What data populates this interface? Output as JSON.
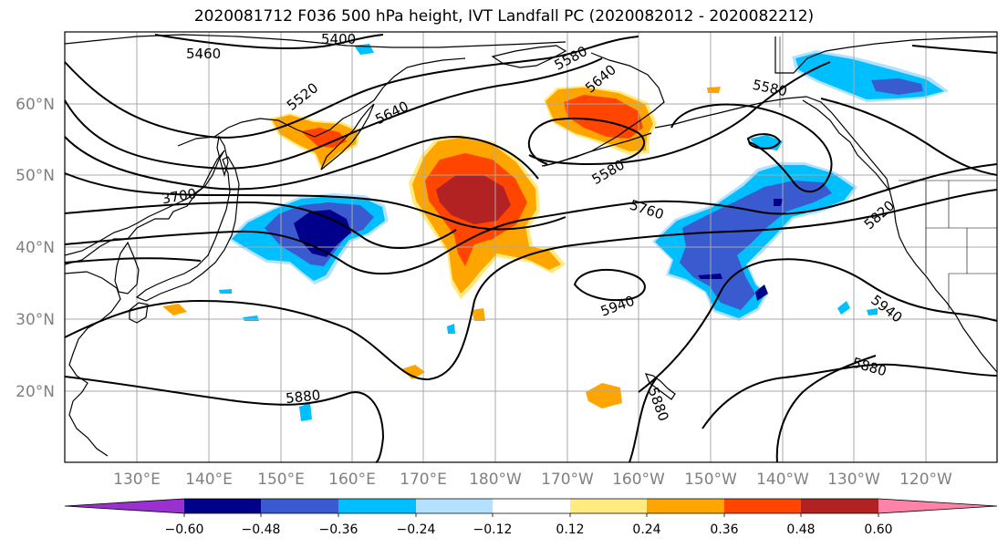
{
  "title": "2020081712 F036 500 hPa height, IVT Landfall PC (2020082012 - 2020082212)",
  "latitude_labels": [
    "60°N",
    "50°N",
    "40°N",
    "30°N",
    "20°N"
  ],
  "longitude_labels": [
    "130°E",
    "140°E",
    "150°E",
    "160°E",
    "170°E",
    "180°W",
    "170°W",
    "160°W",
    "150°W",
    "140°W",
    "130°W",
    "120°W"
  ],
  "height_contour_labels": [
    "5460",
    "5400",
    "5520",
    "5640",
    "5580",
    "5640",
    "5580",
    "5580",
    "3700",
    "5760",
    "5820",
    "5940",
    "5940",
    "5880",
    "5880",
    "5880"
  ],
  "colorbar": {
    "tick_labels": [
      "−0.60",
      "−0.48",
      "−0.36",
      "−0.24",
      "−0.12",
      "0.12",
      "0.24",
      "0.36",
      "0.48",
      "0.60"
    ],
    "colors": [
      "#9b30d0",
      "#00008b",
      "#3a5bd0",
      "#00bfff",
      "#b2e2ff",
      "#ffffff",
      "#ffeb80",
      "#ffa500",
      "#ff4500",
      "#b22222",
      "#ff82a9"
    ]
  }
}
